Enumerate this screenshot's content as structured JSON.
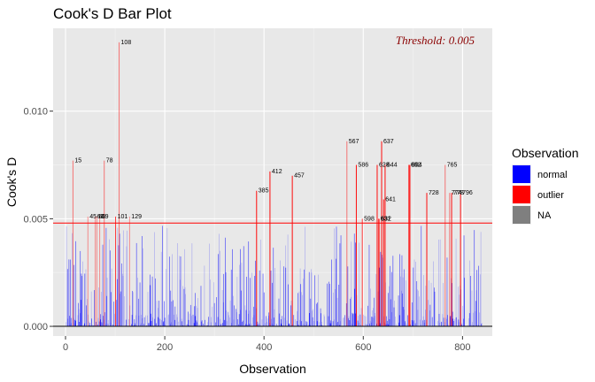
{
  "chart_data": {
    "type": "bar",
    "title": "Cook's D Bar Plot",
    "xlabel": "Observation",
    "ylabel": "Cook's D",
    "xlim": [
      -25,
      860
    ],
    "ylim": [
      -0.00045,
      0.01385
    ],
    "x_ticks": [
      0,
      200,
      400,
      600,
      800
    ],
    "x_tick_labels": [
      "0",
      "200",
      "400",
      "600",
      "800"
    ],
    "y_ticks": [
      0,
      0.005,
      0.01
    ],
    "y_tick_labels": [
      "0.000",
      "0.005",
      "0.010"
    ],
    "grid": true,
    "n_observations": 840,
    "threshold": 0.0048,
    "threshold_label": "Threshold: 0.005",
    "legend": {
      "title": "Observation",
      "position": "right",
      "entries": [
        {
          "label": "normal",
          "color": "#0000ff"
        },
        {
          "label": "outlier",
          "color": "#ff0000"
        },
        {
          "label": "NA",
          "color": "#7f7f7f"
        }
      ]
    },
    "outliers": [
      {
        "x": 15,
        "y": 0.0077,
        "label": "15"
      },
      {
        "x": 45,
        "y": 0.0051,
        "label": "45"
      },
      {
        "x": 60,
        "y": 0.0051,
        "label": "60"
      },
      {
        "x": 63,
        "y": 0.0051,
        "label": "63"
      },
      {
        "x": 69,
        "y": 0.0051,
        "label": "69"
      },
      {
        "x": 78,
        "y": 0.0077,
        "label": "78"
      },
      {
        "x": 101,
        "y": 0.0051,
        "label": "101"
      },
      {
        "x": 108,
        "y": 0.0132,
        "label": "108"
      },
      {
        "x": 129,
        "y": 0.0051,
        "label": "129"
      },
      {
        "x": 385,
        "y": 0.0063,
        "label": "385"
      },
      {
        "x": 412,
        "y": 0.0072,
        "label": "412"
      },
      {
        "x": 457,
        "y": 0.007,
        "label": "457"
      },
      {
        "x": 567,
        "y": 0.0086,
        "label": "567"
      },
      {
        "x": 586,
        "y": 0.0075,
        "label": "586"
      },
      {
        "x": 598,
        "y": 0.005,
        "label": "598"
      },
      {
        "x": 628,
        "y": 0.0075,
        "label": "628"
      },
      {
        "x": 631,
        "y": 0.005,
        "label": "631"
      },
      {
        "x": 632,
        "y": 0.005,
        "label": "632"
      },
      {
        "x": 637,
        "y": 0.0086,
        "label": "637"
      },
      {
        "x": 641,
        "y": 0.0059,
        "label": "641"
      },
      {
        "x": 644,
        "y": 0.0075,
        "label": "644"
      },
      {
        "x": 692,
        "y": 0.0075,
        "label": "692"
      },
      {
        "x": 694,
        "y": 0.0075,
        "label": "694"
      },
      {
        "x": 728,
        "y": 0.0062,
        "label": "728"
      },
      {
        "x": 765,
        "y": 0.0075,
        "label": "765"
      },
      {
        "x": 774,
        "y": 0.0062,
        "label": "774"
      },
      {
        "x": 778,
        "y": 0.0062,
        "label": "778"
      },
      {
        "x": 796,
        "y": 0.0062,
        "label": "796"
      }
    ]
  }
}
